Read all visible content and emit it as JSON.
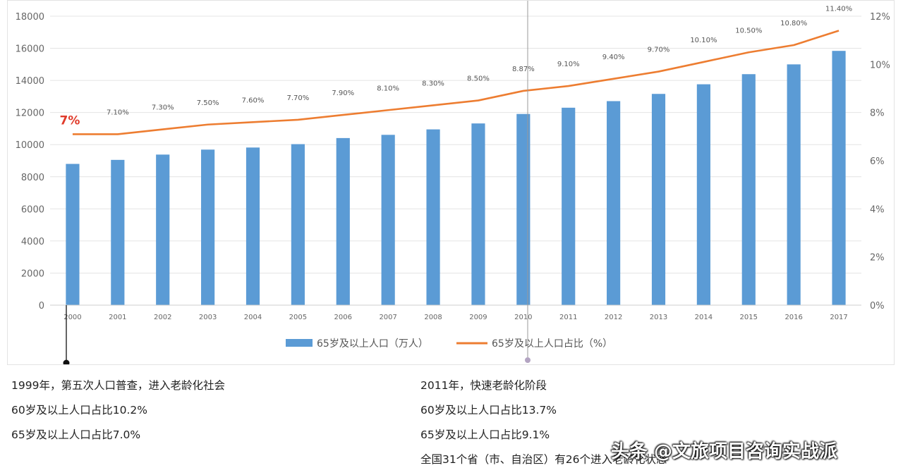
{
  "chart_data": {
    "type": "bar+line",
    "categories": [
      "2000",
      "2001",
      "2002",
      "2003",
      "2004",
      "2005",
      "2006",
      "2007",
      "2008",
      "2009",
      "2010",
      "2011",
      "2012",
      "2013",
      "2014",
      "2015",
      "2016",
      "2017"
    ],
    "series": [
      {
        "name": "65岁及以上人口（万人）",
        "type": "bar",
        "axis": "left",
        "color": "#5b9bd5",
        "values": [
          8800,
          9050,
          9380,
          9690,
          9820,
          10030,
          10410,
          10610,
          10950,
          11320,
          11910,
          12300,
          12710,
          13160,
          13760,
          14390,
          15000,
          15840
        ]
      },
      {
        "name": "65岁及以上人口占比（%）",
        "type": "line",
        "axis": "right",
        "color": "#ed7d31",
        "values": [
          7.1,
          7.1,
          7.3,
          7.5,
          7.6,
          7.7,
          7.9,
          8.1,
          8.3,
          8.5,
          8.9,
          9.1,
          9.4,
          9.7,
          10.1,
          10.5,
          10.8,
          11.4
        ],
        "labels": [
          "7%",
          "7.10%",
          "7.30%",
          "7.50%",
          "7.60%",
          "7.70%",
          "7.90%",
          "8.10%",
          "8.30%",
          "8.50%",
          "8.87%",
          "9.10%",
          "9.40%",
          "9.70%",
          "10.10%",
          "10.50%",
          "10.80%",
          "11.40%"
        ]
      }
    ],
    "y_left": {
      "min": 0,
      "max": 18000,
      "ticks": [
        "0",
        "2000",
        "4000",
        "6000",
        "8000",
        "10000",
        "12000",
        "14000",
        "16000",
        "18000"
      ]
    },
    "y_right": {
      "min": 0,
      "max": 12,
      "ticks": [
        "0%",
        "2%",
        "4%",
        "6%",
        "8%",
        "10%",
        "12%"
      ]
    },
    "grid": true,
    "legend_position": "bottom"
  },
  "notes": {
    "left": [
      "1999年，第五次人口普查，进入老龄化社会",
      "60岁及以上人口占比10.2%",
      "65岁及以上人口占比7.0%"
    ],
    "right": [
      "2011年，快速老龄化阶段",
      "60岁及以上人口占比13.7%",
      "65岁及以上人口占比9.1%",
      "全国31个省（市、自治区）有26个进入老龄化状态"
    ]
  },
  "watermark": "头条 @文旅项目咨询实战派"
}
